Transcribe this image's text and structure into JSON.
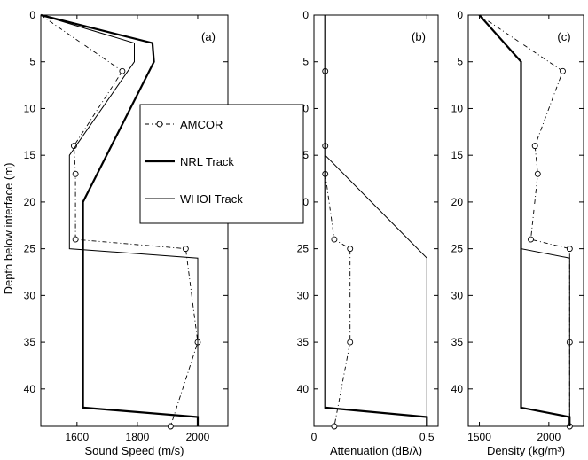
{
  "chart_data": [
    {
      "type": "line",
      "panel_label": "(a)",
      "xlabel": "Sound Speed (m/s)",
      "ylabel": "Depth below interface (m)",
      "xlim": [
        1480,
        2100
      ],
      "ylim": [
        0,
        44
      ],
      "y_inverted": true,
      "xticks": [
        1600,
        1800,
        2000
      ],
      "yticks": [
        0,
        5,
        10,
        15,
        20,
        25,
        30,
        35,
        40
      ],
      "legend": {
        "position": "right-center",
        "entries": [
          "AMCOR",
          "NRL Track",
          "WHOI Track"
        ]
      },
      "series": [
        {
          "name": "AMCOR",
          "style": "dashdot-circle",
          "x": [
            1480,
            1750,
            1590,
            1595,
            1595,
            1960,
            2000,
            1910
          ],
          "y": [
            0,
            6,
            14,
            17,
            24,
            25,
            35,
            44
          ]
        },
        {
          "name": "NRL Track",
          "style": "thick-solid",
          "x": [
            1480,
            1850,
            1855,
            1620,
            1620,
            2000,
            2000
          ],
          "y": [
            0,
            3,
            5,
            20,
            42,
            43,
            44
          ]
        },
        {
          "name": "WHOI Track",
          "style": "thin-solid",
          "x": [
            1480,
            1790,
            1790,
            1575,
            1575,
            2000,
            2000
          ],
          "y": [
            0,
            3,
            5,
            15,
            25,
            26,
            44
          ]
        }
      ]
    },
    {
      "type": "line",
      "panel_label": "(b)",
      "xlabel": "Attenuation (dB/λ)",
      "xlim": [
        0,
        0.55
      ],
      "ylim": [
        0,
        44
      ],
      "y_inverted": true,
      "xticks": [
        "0",
        "0.5"
      ],
      "xtick_values": [
        0,
        0.5
      ],
      "yticks": [
        0,
        5,
        10,
        15,
        20,
        25,
        30,
        35,
        40
      ],
      "series": [
        {
          "name": "AMCOR",
          "style": "dashdot-circle",
          "x": [
            0.05,
            0.05,
            0.05,
            0.05,
            0.09,
            0.16,
            0.16,
            0.09
          ],
          "y": [
            0,
            6,
            14,
            17,
            24,
            25,
            35,
            44
          ]
        },
        {
          "name": "NRL Track",
          "style": "thick-solid",
          "x": [
            0.05,
            0.05,
            0.5,
            0.5
          ],
          "y": [
            0,
            42,
            43,
            44
          ]
        },
        {
          "name": "WHOI Track",
          "style": "thin-solid",
          "x": [
            0.05,
            0.05,
            0.5,
            0.5
          ],
          "y": [
            0,
            15,
            26,
            44
          ]
        }
      ]
    },
    {
      "type": "line",
      "panel_label": "(c)",
      "xlabel": "Density (kg/m³)",
      "xlim": [
        1420,
        2250
      ],
      "ylim": [
        0,
        44
      ],
      "y_inverted": true,
      "xticks": [
        1500,
        2000
      ],
      "yticks": [
        0,
        5,
        10,
        15,
        20,
        25,
        30,
        35,
        40
      ],
      "series": [
        {
          "name": "AMCOR",
          "style": "dashdot-circle",
          "x": [
            1500,
            2100,
            1900,
            1920,
            1870,
            2150,
            2150,
            2150
          ],
          "y": [
            0,
            6,
            14,
            17,
            24,
            25,
            35,
            44
          ]
        },
        {
          "name": "NRL Track",
          "style": "thick-solid",
          "x": [
            1500,
            1800,
            1800,
            2150,
            2150
          ],
          "y": [
            0,
            5,
            42,
            43,
            44
          ]
        },
        {
          "name": "WHOI Track",
          "style": "thin-solid",
          "x": [
            1500,
            1800,
            1800,
            2150,
            2150
          ],
          "y": [
            0,
            5,
            25,
            26,
            44
          ]
        }
      ]
    }
  ]
}
